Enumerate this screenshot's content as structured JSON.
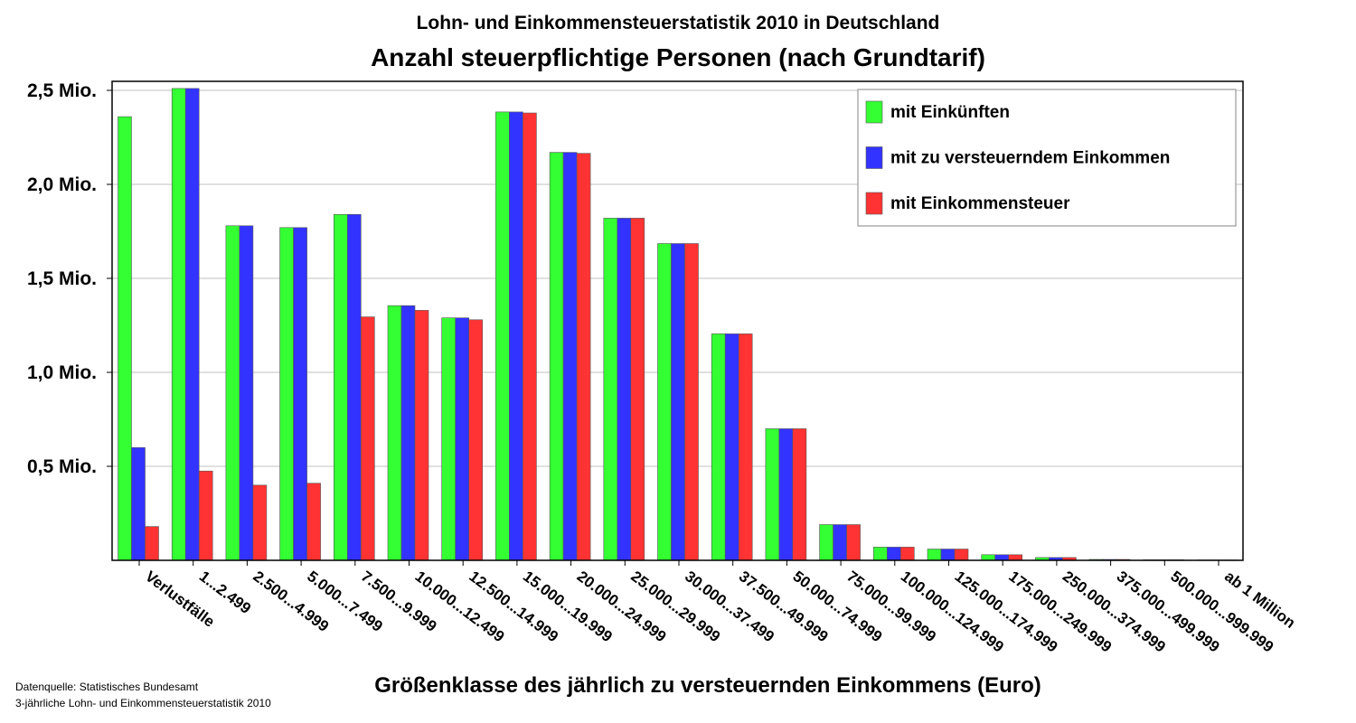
{
  "chart_data": {
    "type": "bar",
    "title": "Lohn- und Einkommensteuerstatistik 2010 in Deutschland",
    "subtitle": "Anzahl steuerpflichtige Personen (nach Grundtarif)",
    "xlabel": "Größenklasse des jährlich zu versteuernden Einkommens (Euro)",
    "ylabel": "",
    "ylim": [
      0,
      2.55
    ],
    "yunit": "Mio.",
    "yticks": [
      {
        "value": 0.5,
        "label": "0,5 Mio."
      },
      {
        "value": 1.0,
        "label": "1,0 Mio."
      },
      {
        "value": 1.5,
        "label": "1,5 Mio."
      },
      {
        "value": 2.0,
        "label": "2,0 Mio."
      },
      {
        "value": 2.5,
        "label": "2,5 Mio."
      }
    ],
    "grid": true,
    "legend_position": "top-right",
    "categories": [
      "Verlustfälle",
      "1...2.499",
      "2.500...4.999",
      "5.000...7.499",
      "7.500...9.999",
      "10.000...12.499",
      "12.500...14.999",
      "15.000...19.999",
      "20.000...24.999",
      "25.000...29.999",
      "30.000...37.499",
      "37.500...49.999",
      "50.000...74.999",
      "75.000...99.999",
      "100.000...124.999",
      "125.000...174.999",
      "175.000...249.999",
      "250.000...374.999",
      "375.000...499.999",
      "500.000...999.999",
      "ab 1 Million"
    ],
    "series": [
      {
        "name": "mit Einkünften",
        "color": "#33ff33",
        "values": [
          2.36,
          2.51,
          1.78,
          1.77,
          1.84,
          1.355,
          1.29,
          2.385,
          2.17,
          1.82,
          1.685,
          1.205,
          0.7,
          0.19,
          0.07,
          0.06,
          0.03,
          0.015,
          0.005,
          0.003,
          0.002
        ]
      },
      {
        "name": "mit zu versteuerndem Einkommen",
        "color": "#3333ff",
        "values": [
          0.6,
          2.51,
          1.78,
          1.77,
          1.84,
          1.355,
          1.29,
          2.385,
          2.17,
          1.82,
          1.685,
          1.205,
          0.7,
          0.19,
          0.07,
          0.06,
          0.03,
          0.015,
          0.005,
          0.003,
          0.002
        ]
      },
      {
        "name": "mit Einkommensteuer",
        "color": "#ff3333",
        "values": [
          0.18,
          0.475,
          0.4,
          0.41,
          1.295,
          1.33,
          1.28,
          2.38,
          2.165,
          1.82,
          1.685,
          1.205,
          0.7,
          0.19,
          0.07,
          0.06,
          0.03,
          0.015,
          0.005,
          0.003,
          0.002
        ]
      }
    ],
    "source_lines": [
      "Datenquelle: Statistisches Bundesamt",
      "3-jährliche Lohn- und Einkommensteuerstatistik 2010"
    ]
  }
}
